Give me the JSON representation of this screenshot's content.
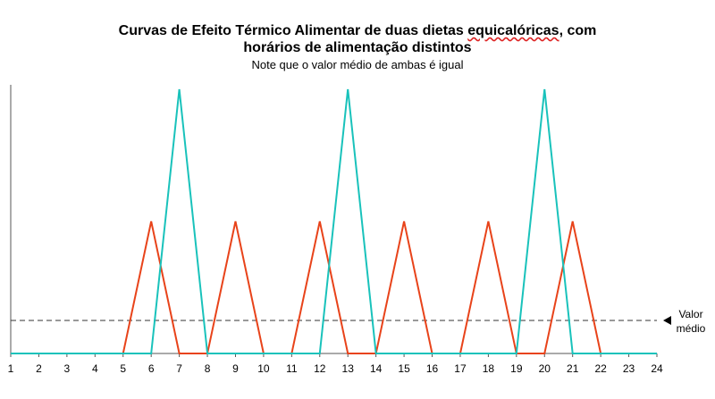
{
  "title_line1_a": "Curvas de Efeito Térmico Alimentar de duas dietas ",
  "title_line1_b": "equicalóricas",
  "title_line1_c": ", com",
  "title_line2": "horários de alimentação distintos",
  "subtitle": "Note que o valor médio de ambas é igual",
  "chart_data": {
    "type": "line",
    "x": [
      1,
      2,
      3,
      4,
      5,
      6,
      7,
      8,
      9,
      10,
      11,
      12,
      13,
      14,
      15,
      16,
      17,
      18,
      19,
      20,
      21,
      22,
      23,
      24
    ],
    "xlim": [
      1,
      24
    ],
    "ylim": [
      0,
      10
    ],
    "series": [
      {
        "color": "#e8431a",
        "values": [
          0,
          0,
          0,
          0,
          0,
          5,
          0,
          0,
          5,
          0,
          0,
          5,
          0,
          0,
          5,
          0,
          0,
          5,
          0,
          0,
          5,
          0,
          0,
          0
        ]
      },
      {
        "color": "#19c2bb",
        "values": [
          0,
          0,
          0,
          0,
          0,
          0,
          10,
          0,
          0,
          0,
          0,
          0,
          10,
          0,
          0,
          0,
          0,
          0,
          0,
          10,
          0,
          0,
          0,
          0
        ]
      }
    ],
    "average": {
      "value": 1.25,
      "label_line1": "Valor",
      "label_line2": "médio"
    },
    "grid": false,
    "xlabel": "",
    "ylabel": ""
  }
}
